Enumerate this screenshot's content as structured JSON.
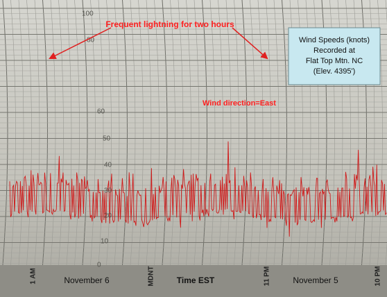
{
  "annotations": {
    "lightning": "Frequent lightning for two hours",
    "wind_direction": "Wind direction=East"
  },
  "info_box": {
    "lines": [
      "Wind Speeds (knots)",
      "Recorded at",
      "Flat Top Mtn. NC",
      "(Elev. 4395')"
    ]
  },
  "footer": {
    "left_date": "November 6",
    "axis_title": "Time EST",
    "right_date": "November 5"
  },
  "chart_paper": {
    "time_marks": [
      "1 AM",
      "MDNT",
      "11 PM",
      "10 PM"
    ],
    "scale": [
      "100",
      "80",
      "60",
      "50",
      "40",
      "30",
      "20",
      "10",
      "0"
    ]
  }
}
